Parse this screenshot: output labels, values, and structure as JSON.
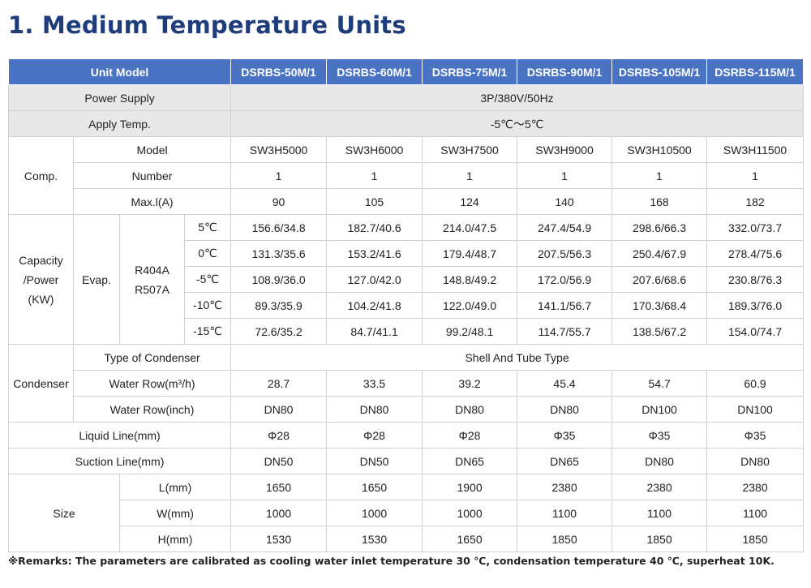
{
  "title": "1. Medium Temperature Units",
  "header": {
    "unit_model": "Unit Model",
    "models": [
      "DSRBS-50M/1",
      "DSRBS-60M/1",
      "DSRBS-75M/1",
      "DSRBS-90M/1",
      "DSRBS-105M/1",
      "DSRBS-115M/1"
    ]
  },
  "power_supply": {
    "label": "Power Supply",
    "value": "3P/380V/50Hz"
  },
  "apply_temp": {
    "label": "Apply Temp.",
    "value": "-5℃～5℃"
  },
  "comp": {
    "label": "Comp.",
    "model": {
      "label": "Model",
      "values": [
        "SW3H5000",
        "SW3H6000",
        "SW3H7500",
        "SW3H9000",
        "SW3H10500",
        "SW3H11500"
      ]
    },
    "number": {
      "label": "Number",
      "values": [
        "1",
        "1",
        "1",
        "1",
        "1",
        "1"
      ]
    },
    "max": {
      "label": "Max.l(A)",
      "values": [
        "90",
        "105",
        "124",
        "140",
        "168",
        "182"
      ]
    }
  },
  "capacity": {
    "label_line1": "Capacity",
    "label_line2": "/Power",
    "label_line3": "(KW)",
    "evap": "Evap.",
    "refrigerant_line1": "R404A",
    "refrigerant_line2": "R507A",
    "rows": [
      {
        "temp": "5℃",
        "values": [
          "156.6/34.8",
          "182.7/40.6",
          "214.0/47.5",
          "247.4/54.9",
          "298.6/66.3",
          "332.0/73.7"
        ]
      },
      {
        "temp": "0℃",
        "values": [
          "131.3/35.6",
          "153.2/41.6",
          "179.4/48.7",
          "207.5/56.3",
          "250.4/67.9",
          "278.4/75.6"
        ]
      },
      {
        "temp": "-5℃",
        "values": [
          "108.9/36.0",
          "127.0/42.0",
          "148.8/49.2",
          "172.0/56.9",
          "207.6/68.6",
          "230.8/76.3"
        ]
      },
      {
        "temp": "-10℃",
        "values": [
          "89.3/35.9",
          "104.2/41.8",
          "122.0/49.0",
          "141.1/56.7",
          "170.3/68.4",
          "189.3/76.0"
        ]
      },
      {
        "temp": "-15℃",
        "values": [
          "72.6/35.2",
          "84.7/41.1",
          "99.2/48.1",
          "114.7/55.7",
          "138.5/67.2",
          "154.0/74.7"
        ]
      }
    ]
  },
  "condenser": {
    "label": "Condenser",
    "type": {
      "label": "Type of Condenser",
      "value": "Shell And Tube Type"
    },
    "water_row_m3": {
      "label": "Water Row(m³/h)",
      "values": [
        "28.7",
        "33.5",
        "39.2",
        "45.4",
        "54.7",
        "60.9"
      ]
    },
    "water_row_inch": {
      "label": "Water Row(inch)",
      "values": [
        "DN80",
        "DN80",
        "DN80",
        "DN80",
        "DN100",
        "DN100"
      ]
    }
  },
  "liquid_line": {
    "label": "Liquid Line(mm)",
    "values": [
      "Φ28",
      "Φ28",
      "Φ28",
      "Φ35",
      "Φ35",
      "Φ35"
    ]
  },
  "suction_line": {
    "label": "Suction Line(mm)",
    "values": [
      "DN50",
      "DN50",
      "DN65",
      "DN65",
      "DN80",
      "DN80"
    ]
  },
  "size": {
    "label": "Size",
    "l": {
      "label": "L(mm)",
      "values": [
        "1650",
        "1650",
        "1900",
        "2380",
        "2380",
        "2380"
      ]
    },
    "w": {
      "label": "W(mm)",
      "values": [
        "1000",
        "1000",
        "1000",
        "1100",
        "1100",
        "1100"
      ]
    },
    "h": {
      "label": "H(mm)",
      "values": [
        "1530",
        "1530",
        "1650",
        "1850",
        "1850",
        "1850"
      ]
    }
  },
  "remark": "※Remarks: The parameters are calibrated as cooling water inlet temperature 30 ℃, condensation temperature 40 ℃, superheat 10K."
}
